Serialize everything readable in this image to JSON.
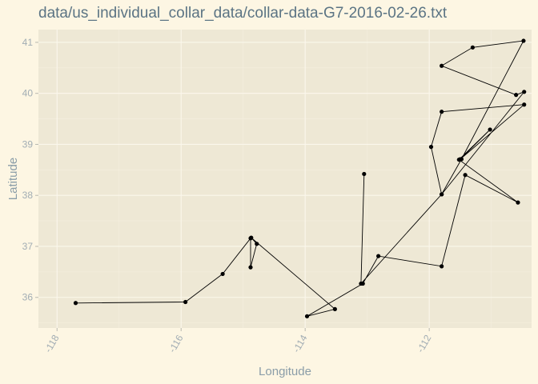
{
  "colors": {
    "page_background": "#fdf6e3",
    "panel_background": "#eee8d5",
    "grid_major": "#fbf7ec",
    "grid_minor": "#f5efdf",
    "title": "#5b7484",
    "axis_title": "#8a9da8",
    "tick_label": "#a2adb4",
    "tick_mark": "#b8b8b0",
    "series": "#000000"
  },
  "chart_data": {
    "type": "line",
    "title": "data/us_individual_collar_data/collar-data-G7-2016-02-26.txt",
    "xlabel": "Longitude",
    "ylabel": "Latitude",
    "xlim": [
      -118.3,
      -110.35
    ],
    "ylim": [
      35.4,
      41.25
    ],
    "x_ticks": [
      -118,
      -116,
      -114,
      -112
    ],
    "y_ticks": [
      36,
      37,
      38,
      39,
      40,
      41
    ],
    "x_tick_labels": [
      "-118",
      "-116",
      "-114",
      "-112"
    ],
    "y_tick_labels": [
      "36",
      "37",
      "38",
      "39",
      "40",
      "41"
    ],
    "grid": true,
    "legend": "none",
    "markers": true,
    "series": [
      {
        "x": [
          -117.7,
          -115.93,
          -115.33,
          -114.88,
          -114.88,
          -114.78,
          -114.87,
          -113.52,
          -113.97,
          -113.07,
          -112.82,
          -111.8,
          -111.42,
          -110.57,
          -111.52,
          -111.02,
          -111.5,
          -110.47,
          -111.8,
          -111.97,
          -111.8,
          -110.47,
          -110.6,
          -111.8,
          -111.3,
          -110.48,
          -111.48,
          -111.8,
          -113.1,
          -113.05
        ],
        "y": [
          35.89,
          35.91,
          36.46,
          37.16,
          36.59,
          37.05,
          37.17,
          35.77,
          35.63,
          36.27,
          36.81,
          36.61,
          38.4,
          37.86,
          38.7,
          39.29,
          38.71,
          39.78,
          39.64,
          38.95,
          38.02,
          40.03,
          39.97,
          40.54,
          40.9,
          41.03,
          38.71,
          38.02,
          36.27,
          38.42
        ]
      }
    ]
  }
}
